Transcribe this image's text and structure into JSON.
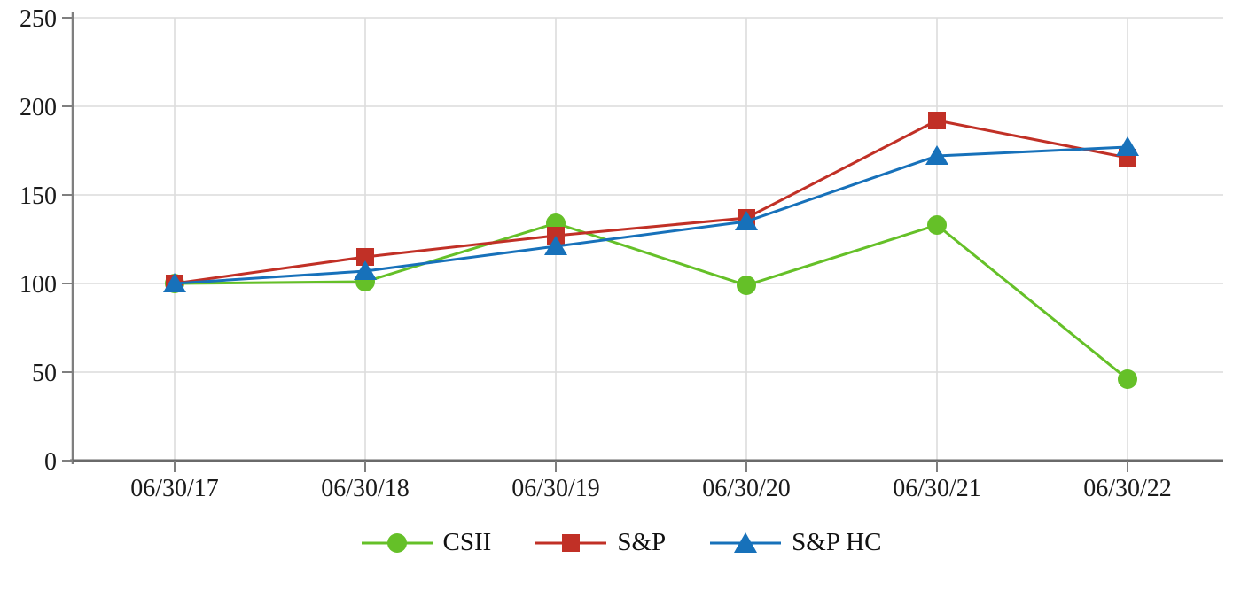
{
  "chart_data": {
    "type": "line",
    "title": "",
    "xlabel": "",
    "ylabel": "",
    "x_categories": [
      "06/30/17",
      "06/30/18",
      "06/30/19",
      "06/30/20",
      "06/30/21",
      "06/30/22"
    ],
    "series": [
      {
        "name": "CSII",
        "marker": "circle",
        "color": "#65C028",
        "values": [
          100,
          101,
          134,
          99,
          133,
          46
        ]
      },
      {
        "name": "S&P",
        "marker": "square",
        "color": "#C13026",
        "values": [
          100,
          115,
          127,
          137,
          192,
          171
        ]
      },
      {
        "name": "S&P HC",
        "marker": "triangle",
        "color": "#1771BA",
        "values": [
          100,
          107,
          121,
          135,
          172,
          177
        ]
      }
    ],
    "ylim": [
      0,
      250
    ],
    "y_ticks": [
      0,
      50,
      100,
      150,
      200,
      250
    ],
    "grid": true,
    "legend_position": "bottom",
    "gridline_color": "#DCDCDC",
    "axis_color": "#7F7F7F",
    "x_axis_color": "#6A6A6A",
    "label_color": "#1a1a1a"
  }
}
